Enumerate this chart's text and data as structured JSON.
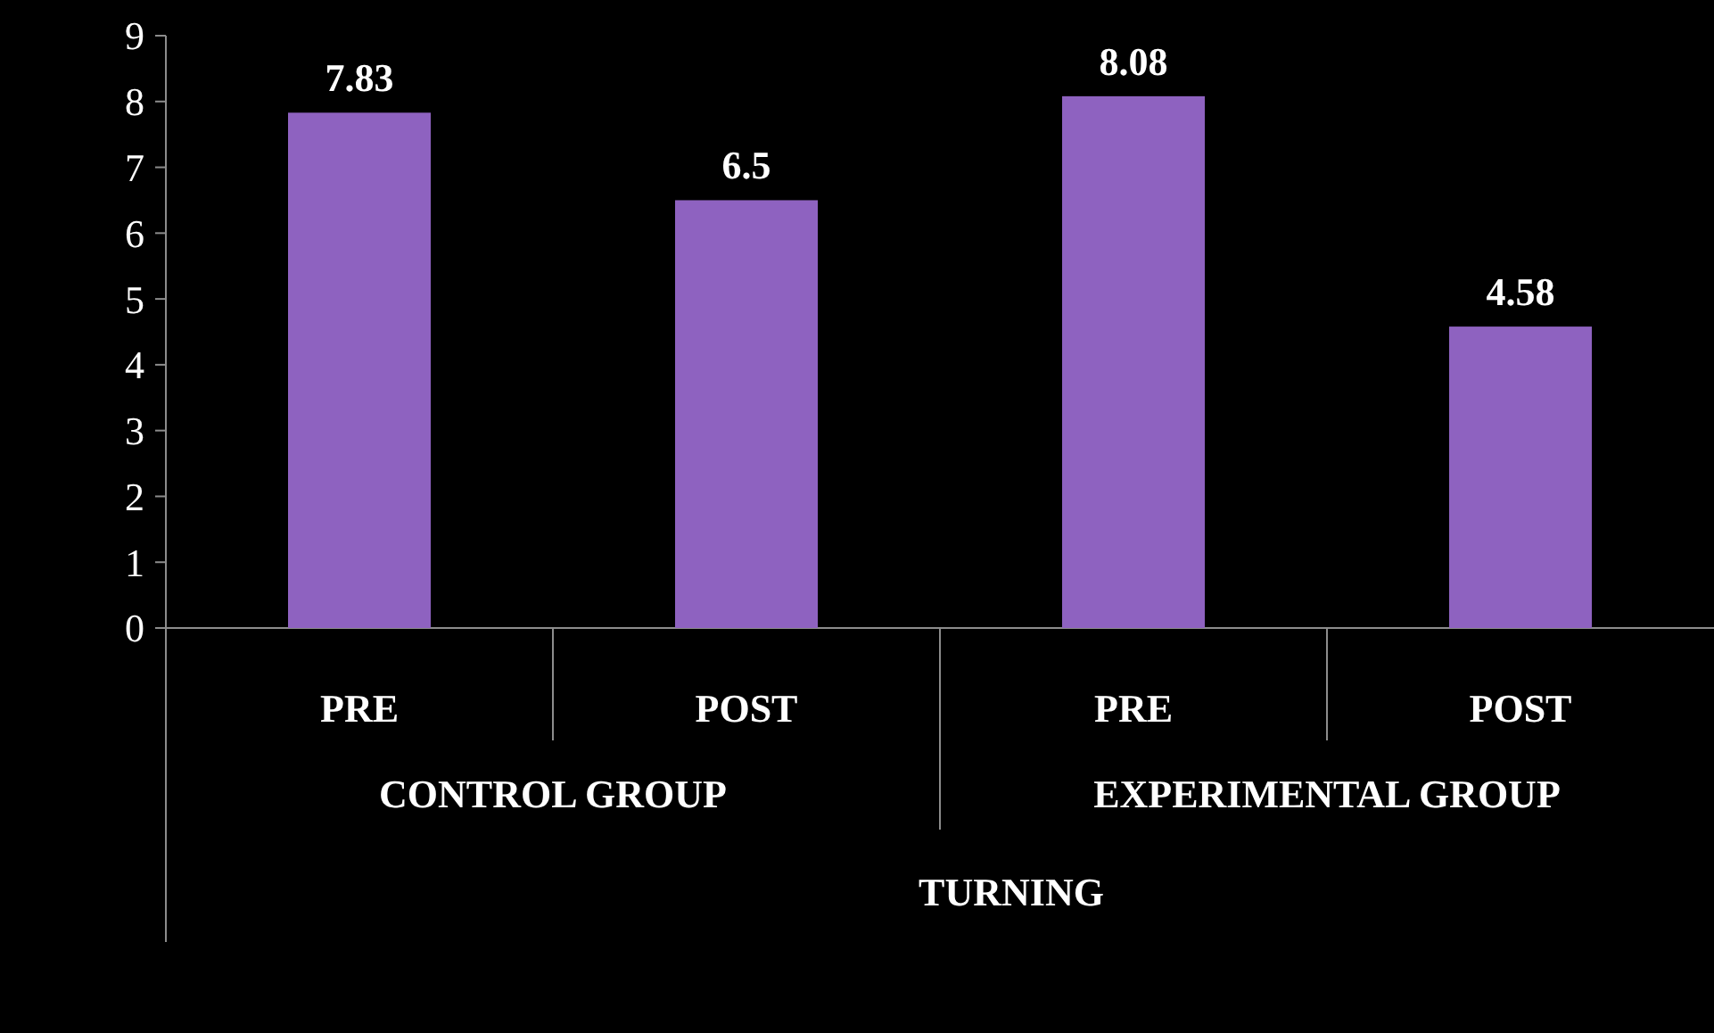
{
  "chart_data": {
    "type": "bar",
    "categories": [
      "PRE",
      "POST",
      "PRE",
      "POST"
    ],
    "values": [
      7.83,
      6.5,
      8.08,
      4.58
    ],
    "color": "#8e62c0",
    "ylim": [
      0,
      9
    ],
    "yticks": [
      0,
      1,
      2,
      3,
      4,
      5,
      6,
      7,
      8,
      9
    ],
    "data_labels": true,
    "grid": false,
    "xlabel": "TURNING",
    "annotations": [
      "CONTROL GROUP",
      "EXPERIMENTAL GROUP"
    ]
  }
}
